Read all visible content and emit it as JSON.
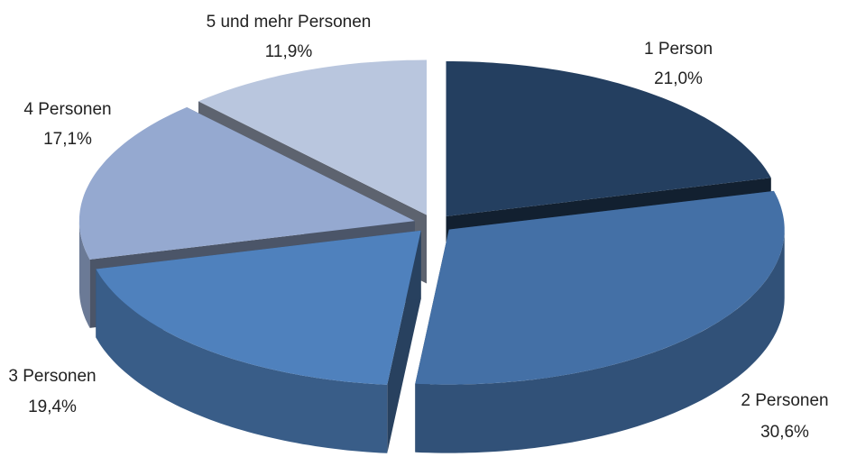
{
  "chart_data": {
    "type": "pie",
    "categories": [
      "1 Person",
      "2 Personen",
      "3 Personen",
      "4 Personen",
      "5 und mehr Personen"
    ],
    "values": [
      21.0,
      30.6,
      19.4,
      17.1,
      11.9
    ],
    "value_labels": [
      "21,0%",
      "30,6%",
      "19,4%",
      "17,1%",
      "11,9%"
    ],
    "colors": [
      "#243f60",
      "#4470a6",
      "#4f81bd",
      "#95a9d0",
      "#b9c6de"
    ]
  }
}
